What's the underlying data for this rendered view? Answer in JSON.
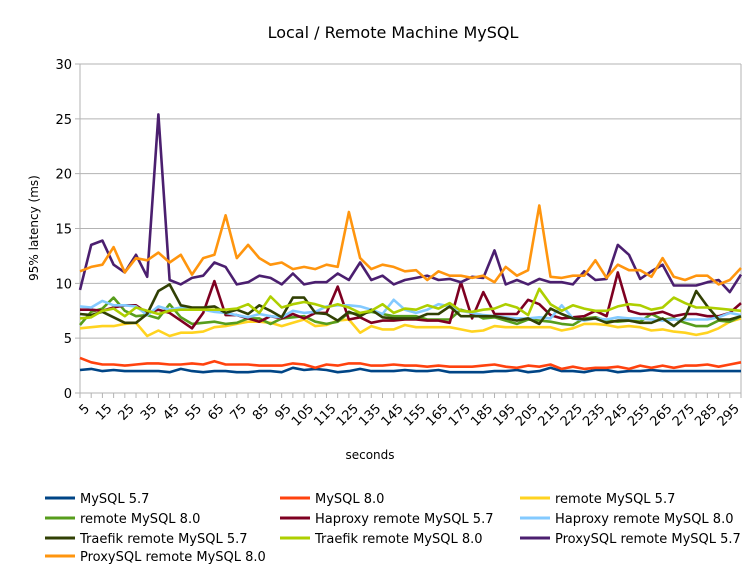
{
  "chart_data": {
    "type": "line",
    "title": "Local / Remote Machine MySQL",
    "xlabel": "seconds",
    "ylabel": "95% latency (ms)",
    "ylim": [
      0,
      30
    ],
    "yticks": [
      0,
      5,
      10,
      15,
      20,
      25,
      30
    ],
    "grid": true,
    "legend": "bottom",
    "x": [
      5,
      10,
      15,
      20,
      25,
      30,
      35,
      40,
      45,
      50,
      55,
      60,
      65,
      70,
      75,
      80,
      85,
      90,
      95,
      100,
      105,
      110,
      115,
      120,
      125,
      130,
      135,
      140,
      145,
      150,
      155,
      160,
      165,
      170,
      175,
      180,
      185,
      190,
      195,
      200,
      205,
      210,
      215,
      220,
      225,
      230,
      235,
      240,
      245,
      250,
      255,
      260,
      265,
      270,
      275,
      280,
      285,
      290,
      295,
      300
    ],
    "xtick_labels": [
      "5",
      "15",
      "25",
      "35",
      "45",
      "55",
      "65",
      "75",
      "85",
      "95",
      "105",
      "115",
      "125",
      "135",
      "145",
      "155",
      "165",
      "175",
      "185",
      "195",
      "205",
      "215",
      "225",
      "235",
      "245",
      "255",
      "265",
      "275",
      "285",
      "295"
    ],
    "series": [
      {
        "name": "MySQL 5.7",
        "color": "#004586",
        "values": [
          2.1,
          2.2,
          2.0,
          2.1,
          2.0,
          2.0,
          2.0,
          2.0,
          1.9,
          2.2,
          2.0,
          1.9,
          2.0,
          2.0,
          1.9,
          1.9,
          2.0,
          2.0,
          1.9,
          2.3,
          2.1,
          2.2,
          2.1,
          1.9,
          2.0,
          2.2,
          2.0,
          2.0,
          2.0,
          2.1,
          2.0,
          2.0,
          2.1,
          1.9,
          1.9,
          1.9,
          1.9,
          2.0,
          2.0,
          2.1,
          1.9,
          2.0,
          2.3,
          2.0,
          2.0,
          1.9,
          2.1,
          2.1,
          1.9,
          2.0,
          2.0,
          2.1,
          2.0,
          2.0,
          2.0,
          2.0,
          2.0,
          2.0,
          2.0,
          2.0
        ]
      },
      {
        "name": "MySQL 8.0",
        "color": "#ff420e",
        "values": [
          3.2,
          2.8,
          2.6,
          2.6,
          2.5,
          2.6,
          2.7,
          2.7,
          2.6,
          2.6,
          2.7,
          2.6,
          2.9,
          2.6,
          2.6,
          2.6,
          2.5,
          2.5,
          2.5,
          2.7,
          2.6,
          2.3,
          2.6,
          2.5,
          2.7,
          2.7,
          2.5,
          2.5,
          2.6,
          2.5,
          2.5,
          2.4,
          2.5,
          2.4,
          2.4,
          2.4,
          2.5,
          2.6,
          2.4,
          2.3,
          2.5,
          2.4,
          2.6,
          2.2,
          2.4,
          2.2,
          2.3,
          2.3,
          2.4,
          2.2,
          2.5,
          2.3,
          2.5,
          2.3,
          2.5,
          2.5,
          2.6,
          2.4,
          2.6,
          2.8
        ]
      },
      {
        "name": "remote MySQL 5.7",
        "color": "#ffd320",
        "values": [
          5.9,
          6.0,
          6.1,
          6.1,
          6.3,
          6.4,
          5.2,
          5.7,
          5.2,
          5.5,
          5.5,
          5.6,
          6.0,
          6.1,
          6.3,
          6.5,
          6.5,
          6.4,
          6.1,
          6.4,
          6.7,
          6.1,
          6.2,
          6.6,
          6.7,
          5.5,
          6.1,
          5.8,
          5.8,
          6.2,
          6.0,
          6.0,
          6.0,
          6.0,
          5.8,
          5.6,
          5.7,
          6.1,
          6.0,
          6.0,
          6.0,
          6.0,
          6.0,
          5.7,
          5.9,
          6.3,
          6.3,
          6.2,
          6.0,
          6.1,
          6.0,
          5.7,
          5.8,
          5.6,
          5.5,
          5.3,
          5.5,
          5.9,
          6.5,
          6.8
        ]
      },
      {
        "name": "remote MySQL 8.0",
        "color": "#579d1c",
        "values": [
          6.2,
          7.4,
          7.7,
          8.7,
          7.5,
          7.0,
          7.1,
          6.8,
          8.1,
          6.9,
          6.3,
          6.4,
          6.5,
          6.3,
          6.4,
          6.8,
          6.8,
          6.3,
          6.8,
          6.9,
          7.0,
          6.5,
          6.3,
          6.5,
          7.3,
          7.2,
          7.4,
          7.2,
          7.0,
          7.0,
          7.0,
          6.7,
          6.7,
          6.7,
          7.6,
          7.3,
          6.8,
          6.9,
          6.6,
          6.3,
          6.7,
          6.6,
          6.5,
          6.3,
          6.2,
          6.8,
          6.9,
          6.6,
          6.5,
          6.6,
          6.5,
          7.2,
          6.7,
          6.8,
          6.4,
          6.1,
          6.1,
          6.6,
          6.5,
          7.0
        ]
      },
      {
        "name": "Haproxy remote MySQL 5.7",
        "color": "#7e0021",
        "values": [
          7.6,
          7.6,
          7.5,
          7.8,
          8.0,
          8.0,
          7.3,
          7.6,
          7.3,
          6.6,
          5.9,
          7.3,
          10.2,
          7.1,
          7.1,
          6.8,
          6.5,
          7.0,
          6.8,
          7.2,
          6.8,
          7.3,
          7.3,
          9.7,
          6.7,
          6.9,
          6.4,
          6.6,
          6.6,
          6.7,
          6.7,
          6.6,
          6.6,
          6.4,
          10.1,
          6.8,
          9.2,
          7.2,
          7.2,
          7.2,
          8.5,
          8.1,
          7.1,
          6.8,
          6.9,
          7.0,
          7.5,
          7.0,
          11.0,
          7.5,
          7.2,
          7.2,
          7.4,
          7.0,
          7.2,
          7.2,
          7.0,
          7.0,
          7.3,
          8.2
        ]
      },
      {
        "name": "Haproxy remote MySQL 8.0",
        "color": "#83caff",
        "values": [
          7.9,
          7.8,
          8.4,
          8.0,
          8.0,
          7.9,
          7.1,
          7.9,
          7.6,
          7.8,
          7.7,
          7.6,
          7.4,
          7.3,
          7.1,
          6.9,
          7.2,
          7.0,
          6.9,
          7.5,
          7.3,
          7.4,
          7.9,
          8.0,
          8.0,
          7.9,
          7.6,
          7.2,
          8.5,
          7.6,
          7.3,
          7.6,
          8.1,
          7.9,
          7.5,
          7.3,
          7.1,
          7.0,
          6.9,
          6.8,
          6.8,
          6.9,
          6.8,
          8.0,
          6.8,
          6.6,
          6.8,
          6.7,
          6.9,
          6.8,
          6.8,
          6.7,
          6.6,
          6.7,
          6.7,
          6.7,
          6.7,
          6.9,
          7.3,
          7.1
        ]
      },
      {
        "name": "Traefik remote MySQL 5.7",
        "color": "#314004",
        "values": [
          7.2,
          7.1,
          7.4,
          6.9,
          6.4,
          6.4,
          7.2,
          9.3,
          9.9,
          8.0,
          7.8,
          7.8,
          7.9,
          7.3,
          7.6,
          7.2,
          8.0,
          7.5,
          6.9,
          8.7,
          8.7,
          7.3,
          7.2,
          6.6,
          7.4,
          7.0,
          7.6,
          6.9,
          6.8,
          6.8,
          6.8,
          7.2,
          7.2,
          7.9,
          7.0,
          7.0,
          7.0,
          7.0,
          6.8,
          6.6,
          6.8,
          6.3,
          7.7,
          7.2,
          6.8,
          6.7,
          6.8,
          6.4,
          6.6,
          6.6,
          6.4,
          6.4,
          6.8,
          6.1,
          6.9,
          9.3,
          7.9,
          6.7,
          6.7,
          7.0
        ]
      },
      {
        "name": "Traefik remote MySQL 8.0",
        "color": "#aecf00",
        "values": [
          6.8,
          6.9,
          7.5,
          7.7,
          7.0,
          7.8,
          7.5,
          7.2,
          7.5,
          7.6,
          7.6,
          7.6,
          7.6,
          7.6,
          7.7,
          8.1,
          7.3,
          8.8,
          7.8,
          8.1,
          8.3,
          8.1,
          7.8,
          8.1,
          7.8,
          7.3,
          7.5,
          8.1,
          7.3,
          7.7,
          7.6,
          8.0,
          7.7,
          8.2,
          7.5,
          7.4,
          7.6,
          7.7,
          8.1,
          7.8,
          7.1,
          9.5,
          8.1,
          7.5,
          8.0,
          7.7,
          7.5,
          7.5,
          7.9,
          8.1,
          8.0,
          7.6,
          7.8,
          8.7,
          8.2,
          7.8,
          7.8,
          7.7,
          7.6,
          7.5
        ]
      },
      {
        "name": "ProxySQL remote MySQL 5.7",
        "color": "#4b1f6f",
        "values": [
          9.4,
          13.5,
          13.9,
          11.7,
          11.0,
          12.6,
          10.6,
          25.4,
          10.3,
          9.9,
          10.5,
          10.7,
          11.9,
          11.5,
          9.9,
          10.1,
          10.7,
          10.5,
          9.9,
          10.9,
          9.9,
          10.1,
          10.1,
          10.9,
          10.3,
          11.9,
          10.3,
          10.7,
          9.9,
          10.3,
          10.5,
          10.7,
          10.3,
          10.4,
          10.1,
          10.6,
          10.5,
          13.0,
          9.9,
          10.3,
          9.9,
          10.4,
          10.1,
          10.1,
          9.9,
          11.1,
          10.3,
          10.4,
          13.5,
          12.6,
          10.4,
          11.1,
          11.7,
          9.8,
          9.8,
          9.8,
          10.1,
          10.3,
          9.2,
          10.8
        ]
      },
      {
        "name": "ProxySQL remote MySQL 8.0",
        "color": "#ff950e",
        "values": [
          11.1,
          11.5,
          11.7,
          13.3,
          11.0,
          12.3,
          12.1,
          12.8,
          11.9,
          12.6,
          10.8,
          12.3,
          12.6,
          16.2,
          12.3,
          13.5,
          12.3,
          11.7,
          11.9,
          11.3,
          11.5,
          11.3,
          11.7,
          11.5,
          16.5,
          12.3,
          11.3,
          11.7,
          11.5,
          11.1,
          11.2,
          10.3,
          11.1,
          10.7,
          10.7,
          10.5,
          10.7,
          10.1,
          11.5,
          10.7,
          11.2,
          17.1,
          10.6,
          10.5,
          10.7,
          10.7,
          12.1,
          10.5,
          11.7,
          11.2,
          11.2,
          10.6,
          12.3,
          10.6,
          10.3,
          10.7,
          10.7,
          9.9,
          10.3,
          11.4
        ]
      }
    ]
  }
}
